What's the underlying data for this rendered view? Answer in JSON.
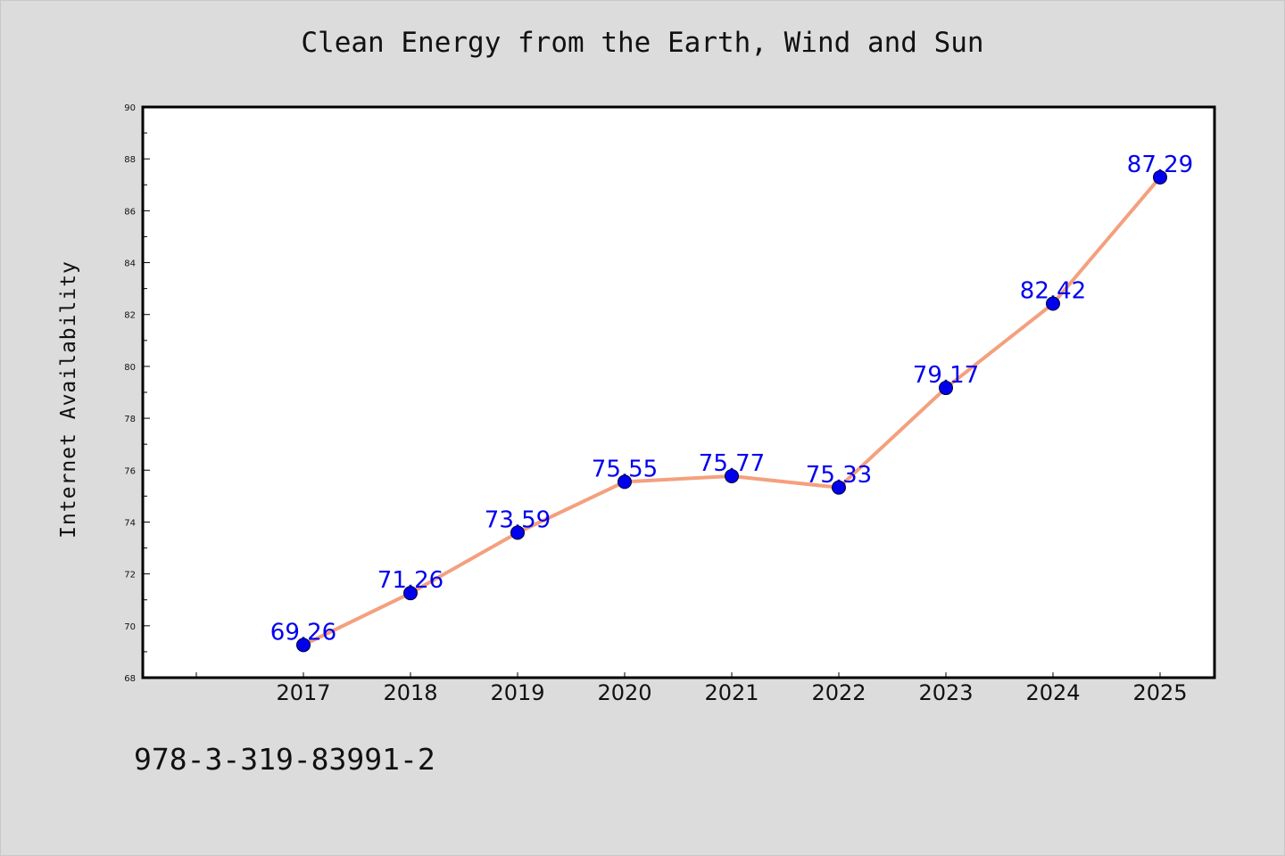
{
  "chart_data": {
    "type": "line",
    "title": "Clean Energy from the Earth, Wind and Sun",
    "xlabel": "",
    "ylabel": "Internet Availability",
    "categories": [
      "2017",
      "2018",
      "2019",
      "2020",
      "2021",
      "2022",
      "2023",
      "2024",
      "2025"
    ],
    "series": [
      {
        "values": [
          69.26,
          71.26,
          73.59,
          75.55,
          75.77,
          75.33,
          79.17,
          82.42,
          87.29
        ],
        "data_labels": [
          "69.26",
          "71.26",
          "73.59",
          "75.55",
          "75.77",
          "75.33",
          "79.17",
          "82.42",
          "87.29"
        ],
        "line_color": "#f4a07e",
        "marker_color": "#0000ee",
        "label_color": "#0000ee"
      }
    ],
    "ylim": [
      68,
      90
    ],
    "yticks": [
      "68",
      "70",
      "72",
      "74",
      "76",
      "78",
      "80",
      "82",
      "84",
      "86",
      "88",
      "90"
    ],
    "grid": false,
    "legend": "none"
  },
  "footer": {
    "isbn": "978-3-319-83991-2"
  },
  "colors": {
    "background": "#dcdcdc",
    "plot_background": "#ffffff",
    "axis": "#000000"
  }
}
